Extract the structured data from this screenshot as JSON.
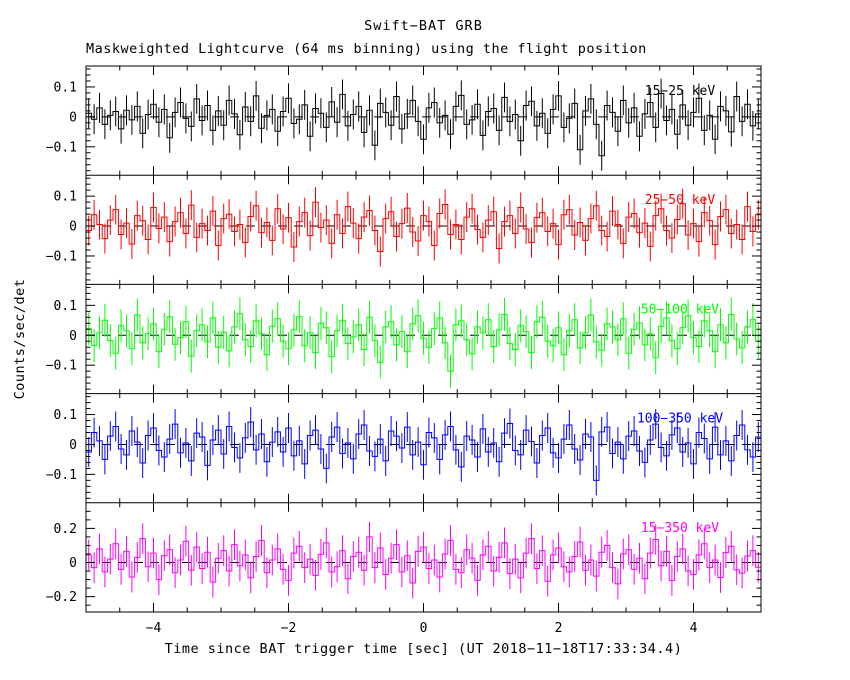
{
  "chart_data": {
    "type": "line",
    "style": "step-histogram lightcurve with vertical error bars, 5 stacked panels",
    "title": "Swift−BAT GRB",
    "subtitle": "Maskweighted Lightcurve (64 ms binning) using the flight position",
    "xlabel": "Time since BAT trigger time [sec] (UT 2018−11−18T17:33:34.4)",
    "ylabel": "Counts/sec/det",
    "xlim": [
      -5,
      5
    ],
    "x_major_ticks": [
      -4,
      -2,
      0,
      2,
      4
    ],
    "x_minor_step": 0.5,
    "grid": false,
    "zero_line": {
      "color": "#000000",
      "style": "dashed"
    },
    "value_scale": 0.001,
    "panels": [
      {
        "label": "15−25 keV",
        "color": "#000000",
        "ylim": [
          -0.195,
          0.17
        ],
        "y_major_ticks": [
          -0.1,
          0,
          0.1
        ],
        "y_minor_step": 0.02,
        "err": 50,
        "values": [
          12,
          -8,
          30,
          -25,
          5,
          18,
          -40,
          22,
          -10,
          35,
          -55,
          8,
          42,
          -18,
          25,
          -70,
          15,
          48,
          -5,
          -32,
          60,
          -12,
          38,
          -45,
          20,
          -28,
          55,
          10,
          -60,
          33,
          -15,
          70,
          -38,
          5,
          25,
          -48,
          18,
          62,
          -22,
          -8,
          40,
          -65,
          28,
          12,
          -35,
          50,
          -18,
          75,
          -30,
          8,
          35,
          -52,
          22,
          -95,
          45,
          15,
          -28,
          68,
          -40,
          10,
          55,
          -15,
          -75,
          30,
          48,
          -20,
          5,
          -58,
          35,
          72,
          -25,
          -10,
          42,
          -62,
          18,
          28,
          -45,
          65,
          -15,
          8,
          -80,
          38,
          52,
          -30,
          12,
          -55,
          25,
          70,
          -35,
          -5,
          45,
          -110,
          20,
          60,
          -25,
          -130,
          38,
          15,
          -48,
          55,
          -20,
          30,
          -65,
          10,
          48,
          -35,
          78,
          -12,
          25,
          -58,
          40,
          -28,
          15,
          62,
          -45,
          5,
          -75,
          35,
          20,
          -50,
          68,
          -15,
          42,
          -30,
          10
        ]
      },
      {
        "label": "25−50 keV",
        "color": "#ff0000",
        "ylim": [
          -0.195,
          0.17
        ],
        "y_major_ticks": [
          -0.1,
          0,
          0.1
        ],
        "y_minor_step": 0.02,
        "err": 50,
        "values": [
          -15,
          38,
          5,
          -42,
          20,
          55,
          -28,
          10,
          -60,
          35,
          18,
          -45,
          62,
          -8,
          30,
          -52,
          15,
          45,
          -25,
          70,
          -38,
          8,
          -15,
          50,
          -65,
          25,
          40,
          -18,
          5,
          -55,
          32,
          68,
          -22,
          12,
          -48,
          58,
          -10,
          28,
          -70,
          15,
          45,
          -32,
          80,
          -5,
          20,
          -58,
          38,
          -25,
          65,
          10,
          -42,
          30,
          52,
          -15,
          -85,
          25,
          48,
          -35,
          8,
          60,
          -20,
          -50,
          35,
          15,
          -65,
          42,
          72,
          -28,
          5,
          -45,
          30,
          58,
          -12,
          -38,
          20,
          48,
          -75,
          15,
          35,
          -25,
          62,
          -10,
          -55,
          28,
          45,
          -18,
          8,
          -62,
          38,
          55,
          -30,
          12,
          -48,
          25,
          68,
          -15,
          -35,
          50,
          5,
          -58,
          30,
          42,
          -22,
          10,
          -68,
          35,
          58,
          -15,
          -40,
          22,
          75,
          -30,
          8,
          -52,
          45,
          18,
          -62,
          32,
          55,
          -25,
          5,
          -45,
          65,
          -18,
          38
        ]
      },
      {
        "label": "50−100 keV",
        "color": "#00ff00",
        "ylim": [
          -0.195,
          0.17
        ],
        "y_major_ticks": [
          -0.1,
          0,
          0.1
        ],
        "y_minor_step": 0.02,
        "err": 55,
        "values": [
          22,
          -35,
          8,
          50,
          -18,
          -60,
          32,
          15,
          -45,
          68,
          -25,
          5,
          38,
          -55,
          20,
          62,
          -30,
          -8,
          45,
          -70,
          15,
          35,
          -22,
          58,
          -40,
          10,
          -52,
          28,
          72,
          -15,
          -38,
          48,
          5,
          -65,
          30,
          55,
          -20,
          -45,
          18,
          62,
          -35,
          8,
          -58,
          40,
          25,
          -72,
          15,
          50,
          -28,
          -5,
          35,
          -48,
          60,
          -18,
          -90,
          28,
          45,
          -32,
          12,
          -55,
          38,
          65,
          -10,
          -40,
          22,
          58,
          -25,
          -120,
          35,
          48,
          -15,
          -62,
          28,
          8,
          52,
          -38,
          18,
          70,
          -28,
          -48,
          32,
          12,
          -58,
          45,
          60,
          -20,
          -35,
          25,
          -65,
          15,
          52,
          -42,
          8,
          68,
          -22,
          -50,
          38,
          28,
          -15,
          55,
          -60,
          20,
          42,
          -32,
          5,
          -75,
          30,
          58,
          -18,
          -45,
          25,
          65,
          -8,
          -38,
          48,
          15,
          -55,
          35,
          -25,
          70,
          -12,
          -42,
          28,
          52,
          -20
        ]
      },
      {
        "label": "100−350 keV",
        "color": "#0000ff",
        "ylim": [
          -0.195,
          0.17
        ],
        "y_major_ticks": [
          -0.1,
          0,
          0.1
        ],
        "y_minor_step": 0.02,
        "err": 50,
        "values": [
          -25,
          40,
          12,
          -50,
          28,
          60,
          -15,
          -35,
          45,
          8,
          -62,
          30,
          55,
          -20,
          -42,
          18,
          68,
          -28,
          5,
          -55,
          38,
          25,
          -70,
          15,
          48,
          -32,
          60,
          -10,
          -45,
          22,
          75,
          -18,
          35,
          -58,
          8,
          42,
          -25,
          55,
          -38,
          12,
          -65,
          30,
          48,
          -15,
          -80,
          25,
          58,
          -30,
          5,
          -48,
          35,
          65,
          -22,
          -40,
          18,
          -55,
          45,
          28,
          -12,
          58,
          -35,
          8,
          -68,
          40,
          22,
          -50,
          32,
          60,
          -18,
          -75,
          28,
          15,
          -42,
          52,
          -25,
          5,
          -58,
          38,
          70,
          -20,
          -35,
          48,
          10,
          -62,
          30,
          55,
          -28,
          -45,
          18,
          65,
          -15,
          -52,
          35,
          25,
          -120,
          42,
          58,
          -30,
          8,
          -48,
          28,
          45,
          -22,
          -60,
          15,
          68,
          -10,
          -38,
          32,
          55,
          -25,
          5,
          -65,
          40,
          20,
          -48,
          58,
          -35,
          12,
          -55,
          30,
          65,
          -18,
          -42,
          25
        ]
      },
      {
        "label": "15−350 keV",
        "color": "#ff00ff",
        "ylim": [
          -0.29,
          0.35
        ],
        "y_major_ticks": [
          -0.2,
          0,
          0.2
        ],
        "y_minor_step": 0.05,
        "err": 90,
        "values": [
          45,
          -30,
          80,
          -55,
          20,
          110,
          -40,
          65,
          -85,
          30,
          140,
          -25,
          55,
          -100,
          40,
          75,
          -60,
          15,
          125,
          -45,
          90,
          -35,
          60,
          -115,
          25,
          70,
          -50,
          105,
          -20,
          45,
          -90,
          35,
          130,
          -60,
          15,
          80,
          -40,
          -105,
          55,
          95,
          -30,
          20,
          -75,
          48,
          115,
          -55,
          -25,
          70,
          -95,
          35,
          60,
          -45,
          150,
          -30,
          85,
          -70,
          25,
          105,
          -55,
          40,
          -120,
          65,
          90,
          -35,
          15,
          -85,
          50,
          130,
          -40,
          -60,
          75,
          25,
          -105,
          45,
          95,
          -50,
          30,
          115,
          -65,
          20,
          -90,
          55,
          140,
          -35,
          70,
          -110,
          45,
          85,
          -25,
          -55,
          35,
          120,
          -45,
          15,
          -80,
          60,
          100,
          -30,
          -125,
          50,
          75,
          -40,
          25,
          -95,
          55,
          135,
          -20,
          65,
          -105,
          35,
          80,
          -50,
          -70,
          45,
          110,
          -30,
          15,
          -88,
          58,
          95,
          -42,
          -62,
          38,
          70,
          -28
        ]
      }
    ]
  }
}
